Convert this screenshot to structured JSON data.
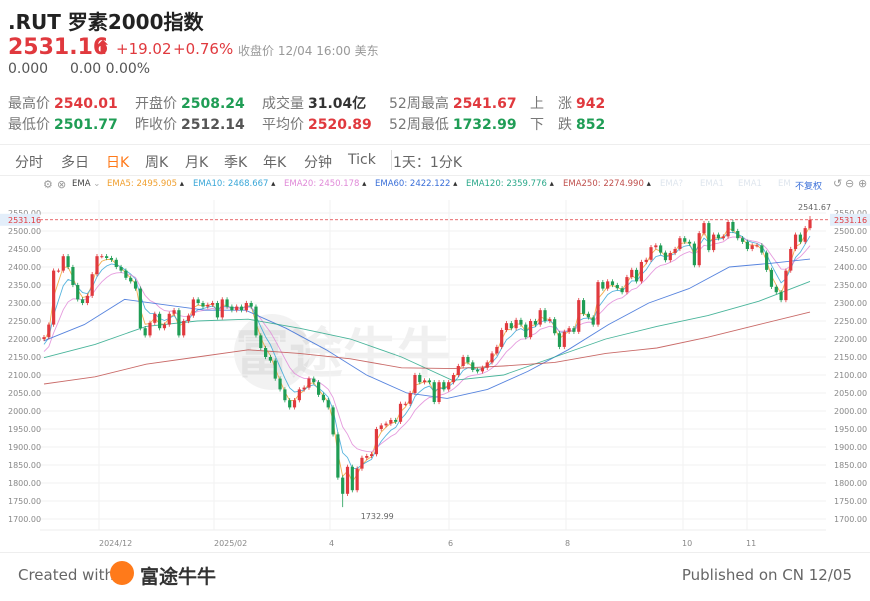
{
  "header": {
    "title": ".RUT 罗素2000指数",
    "price": "2531.16",
    "arrow": "🠕",
    "change": "+19.02",
    "change_pct": "+0.76%",
    "close_info": "收盘价 12/04 16:00 美东",
    "after_value": "0.000",
    "after_change": "0.00 0.00%"
  },
  "stats": [
    {
      "label": "最高价",
      "value": "2540.01",
      "color": "red"
    },
    {
      "label": "开盘价",
      "value": "2508.24",
      "color": "green"
    },
    {
      "label": "成交量",
      "value": "31.04亿",
      "color": "dark"
    },
    {
      "label": "52周最高",
      "value": "2541.67",
      "color": "red"
    },
    {
      "label": "上　涨",
      "value": "942",
      "color": "red"
    },
    {
      "label": "最低价",
      "value": "2501.77",
      "color": "green"
    },
    {
      "label": "昨收价",
      "value": "2512.14",
      "color": "gray"
    },
    {
      "label": "平均价",
      "value": "2520.89",
      "color": "red"
    },
    {
      "label": "52周最低",
      "value": "1732.99",
      "color": "green"
    },
    {
      "label": "下　跌",
      "value": "852",
      "color": "green"
    }
  ],
  "tabs": [
    "分时",
    "多日",
    "日K",
    "周K",
    "月K",
    "季K",
    "年K",
    "分钟",
    "Tick"
  ],
  "active_tab": "日K",
  "interval_label": "1天：1分K",
  "toolbar": {
    "indicator": "EMA",
    "adjust": "不复权",
    "faded": [
      "EMA?",
      "EMA1",
      "EMA1",
      "EM"
    ]
  },
  "colors": {
    "up": "#e0393e",
    "down": "#1f9d55",
    "accent": "#ff7a1a",
    "last_price": "#e0393e"
  },
  "watermark": "富途牛牛",
  "chart_data": {
    "type": "candlestick",
    "ylim": [
      1680,
      2560
    ],
    "y_ticks": [
      "2550.00",
      "2500.00",
      "2450.00",
      "2400.00",
      "2350.00",
      "2300.00",
      "2250.00",
      "2200.00",
      "2150.00",
      "2100.00",
      "2050.00",
      "2000.00",
      "1950.00",
      "1900.00",
      "1850.00",
      "1800.00",
      "1750.00",
      "1700.00"
    ],
    "x_ticks": [
      "2024/12",
      "2025/02",
      "4",
      "6",
      "8",
      "10",
      "11"
    ],
    "last_price": "2531.16",
    "annotations": [
      {
        "text": "1732.99",
        "value": 1732.99,
        "type": "low"
      },
      {
        "text": "2541.67",
        "value": 2541.67,
        "type": "high"
      }
    ],
    "closes": [
      2205,
      2240,
      2390,
      2390,
      2430,
      2400,
      2350,
      2310,
      2300,
      2320,
      2380,
      2430,
      2430,
      2425,
      2420,
      2400,
      2390,
      2370,
      2360,
      2340,
      2230,
      2210,
      2245,
      2270,
      2230,
      2240,
      2270,
      2280,
      2210,
      2250,
      2265,
      2310,
      2300,
      2290,
      2295,
      2300,
      2260,
      2310,
      2290,
      2280,
      2290,
      2280,
      2300,
      2290,
      2210,
      2175,
      2150,
      2140,
      2090,
      2060,
      2030,
      2010,
      2030,
      2060,
      2065,
      2090,
      2080,
      2045,
      2030,
      2010,
      1935,
      1815,
      1770,
      1845,
      1780,
      1840,
      1870,
      1875,
      1880,
      1950,
      1960,
      1965,
      1975,
      1970,
      2020,
      2020,
      2050,
      2100,
      2080,
      2085,
      2080,
      2025,
      2080,
      2060,
      2080,
      2100,
      2125,
      2150,
      2135,
      2114,
      2110,
      2120,
      2135,
      2160,
      2178,
      2225,
      2244,
      2230,
      2253,
      2240,
      2205,
      2250,
      2240,
      2280,
      2250,
      2255,
      2216,
      2178,
      2220,
      2230,
      2220,
      2308,
      2270,
      2260,
      2240,
      2358,
      2340,
      2360,
      2350,
      2341,
      2330,
      2372,
      2392,
      2360,
      2414,
      2420,
      2455,
      2460,
      2440,
      2419,
      2439,
      2450,
      2480,
      2470,
      2465,
      2405,
      2494,
      2522,
      2447,
      2490,
      2480,
      2485,
      2525,
      2500,
      2480,
      2470,
      2450,
      2460,
      2460,
      2440,
      2392,
      2345,
      2330,
      2308,
      2390,
      2450,
      2490,
      2470,
      2508,
      2531.16
    ],
    "ema": [
      {
        "name": "EMA5",
        "label": "EMA5:",
        "value": "2495.905",
        "color": "#f0a030",
        "period": 5
      },
      {
        "name": "EMA10",
        "label": "EMA10:",
        "value": "2468.667",
        "color": "#3aa7d8",
        "period": 10
      },
      {
        "name": "EMA20",
        "label": "EMA20:",
        "value": "2450.178",
        "color": "#e08ad8",
        "period": 20
      },
      {
        "name": "EMA60",
        "label": "EMA60:",
        "value": "2422.122",
        "color": "#3a6fd8",
        "period": 60,
        "points": [
          2195,
          2240,
          2310,
          2295,
          2280,
          2280,
          2230,
          2170,
          2100,
          2050,
          2035,
          2060,
          2110,
          2170,
          2240,
          2300,
          2340,
          2400,
          2410,
          2422.122
        ]
      },
      {
        "name": "EMA120",
        "label": "EMA120:",
        "value": "2359.776",
        "color": "#2aa88a",
        "period": 120,
        "points": [
          2148,
          2185,
          2235,
          2250,
          2255,
          2230,
          2200,
          2150,
          2085,
          2100,
          2150,
          2200,
          2235,
          2265,
          2305,
          2359.776
        ]
      },
      {
        "name": "EMA250",
        "label": "EMA250:",
        "value": "2274.990",
        "color": "#c0504d",
        "period": 250,
        "points": [
          2075,
          2095,
          2130,
          2150,
          2170,
          2160,
          2145,
          2120,
          2118,
          2125,
          2135,
          2160,
          2175,
          2205,
          2240,
          2274.99
        ]
      }
    ]
  },
  "footer": {
    "created": "Created with",
    "brand": "富途牛牛",
    "published": "Published on CN 12/05"
  }
}
